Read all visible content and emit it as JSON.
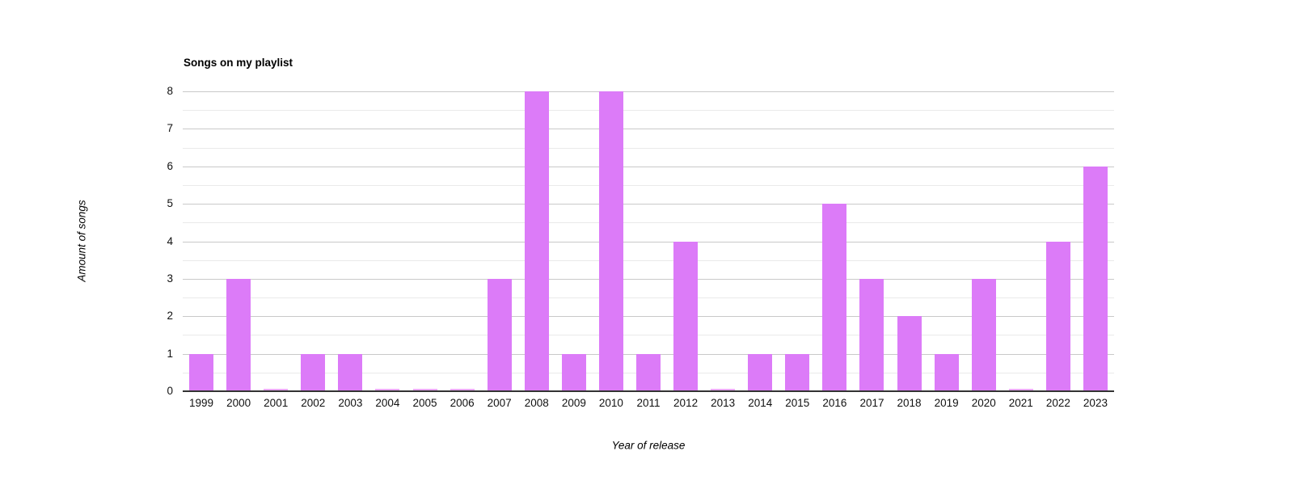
{
  "chart": {
    "title": "Songs on my playlist",
    "x_axis_title": "Year of release",
    "y_axis_title": "Amount of songs"
  },
  "chart_data": {
    "type": "bar",
    "title": "Songs on my playlist",
    "xlabel": "Year of release",
    "ylabel": "Amount of songs",
    "categories": [
      "1999",
      "2000",
      "2001",
      "2002",
      "2003",
      "2004",
      "2005",
      "2006",
      "2007",
      "2008",
      "2009",
      "2010",
      "2011",
      "2012",
      "2013",
      "2014",
      "2015",
      "2016",
      "2017",
      "2018",
      "2019",
      "2020",
      "2021",
      "2022",
      "2023"
    ],
    "values": [
      1,
      3,
      0,
      1,
      1,
      0,
      0,
      0,
      3,
      8,
      1,
      8,
      1,
      4,
      0,
      1,
      1,
      5,
      3,
      2,
      1,
      3,
      0,
      4,
      6
    ],
    "ylim": [
      0,
      8
    ],
    "yticks": [
      0,
      1,
      2,
      3,
      4,
      5,
      6,
      7,
      8
    ],
    "grid": "horizontal, major lines at integers, minor lines at half steps",
    "legend": "none",
    "zero_value_rendering": "thin sliver bar at baseline"
  },
  "colors": {
    "bar": "#dc7bf8",
    "zero_bar": "#eba9f5",
    "major_gridline": "#c9c9c9",
    "minor_gridline": "#eaeaea",
    "axis_line": "#333333",
    "text": "#111111",
    "background": "#ffffff"
  }
}
